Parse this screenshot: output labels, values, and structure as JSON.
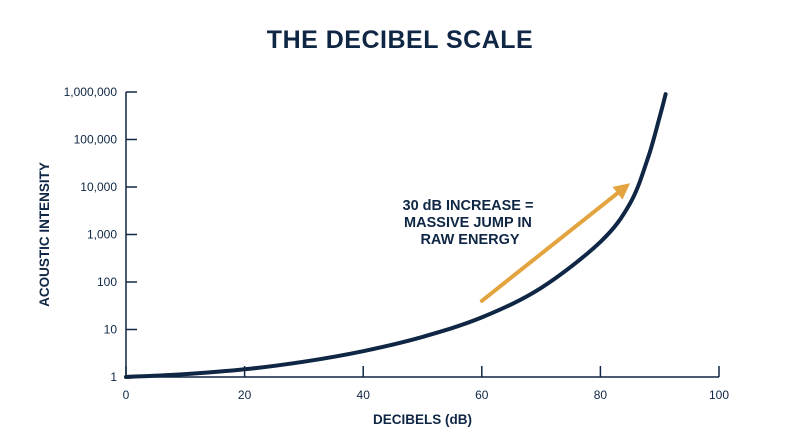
{
  "colors": {
    "ink": "#0f2744",
    "accent": "#e3a43f",
    "background": "#ffffff"
  },
  "chart_data": {
    "type": "line",
    "title": "THE DECIBEL SCALE",
    "xlabel": "DECIBELS (dB)",
    "ylabel": "ACOUSTIC INTENSITY",
    "y_scale": "log",
    "xlim": [
      0,
      100
    ],
    "ylim": [
      1,
      1000000
    ],
    "x_ticks": [
      0,
      20,
      40,
      60,
      80,
      100
    ],
    "x_tick_labels": [
      "0",
      "20",
      "40",
      "60",
      "80",
      "100"
    ],
    "y_ticks": [
      1,
      10,
      100,
      1000,
      10000,
      100000,
      1000000
    ],
    "y_tick_labels": [
      "1",
      "10",
      "100",
      "1,000",
      "10,000",
      "100,000",
      "1,000,000"
    ],
    "grid": false,
    "series": [
      {
        "x": [
          0,
          10,
          20,
          30,
          40,
          50,
          60,
          70,
          80,
          85,
          88,
          90,
          91
        ],
        "y": [
          1,
          1.15,
          1.45,
          2.1,
          3.5,
          7,
          18,
          75,
          700,
          4500,
          40000,
          300000,
          900000
        ]
      }
    ],
    "annotations": [
      {
        "lines": [
          "30 dB INCREASE =",
          "MASSIVE JUMP IN",
          "RAW ENERGY"
        ],
        "arrow_from": [
          60,
          40
        ],
        "arrow_to": [
          85,
          12000
        ]
      }
    ]
  }
}
